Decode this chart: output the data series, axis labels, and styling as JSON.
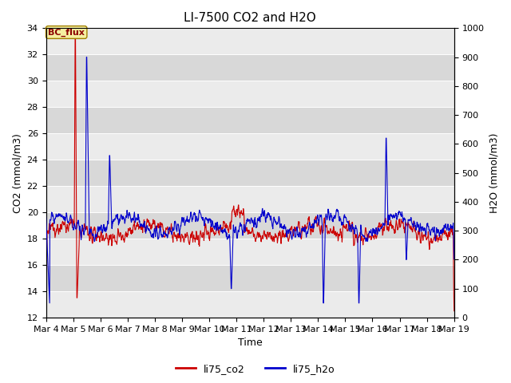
{
  "title": "LI-7500 CO2 and H2O",
  "xlabel": "Time",
  "ylabel_left": "CO2 (mmol/m3)",
  "ylabel_right": "H2O (mmol/m3)",
  "ylim_left": [
    12,
    34
  ],
  "ylim_right": [
    0,
    1000
  ],
  "yticks_left": [
    12,
    14,
    16,
    18,
    20,
    22,
    24,
    26,
    28,
    30,
    32,
    34
  ],
  "yticks_right": [
    0,
    100,
    200,
    300,
    400,
    500,
    600,
    700,
    800,
    900,
    1000
  ],
  "xtick_labels": [
    "Mar 4",
    "Mar 5",
    "Mar 6",
    "Mar 7",
    "Mar 8",
    "Mar 9",
    "Mar 10",
    "Mar 11",
    "Mar 12",
    "Mar 13",
    "Mar 14",
    "Mar 15",
    "Mar 16",
    "Mar 17",
    "Mar 18",
    "Mar 19"
  ],
  "annotation_text": "BC_flux",
  "co2_color": "#cc0000",
  "h2o_color": "#0000cc",
  "bg_light": "#ebebeb",
  "bg_dark": "#d8d8d8",
  "legend_labels": [
    "li75_co2",
    "li75_h2o"
  ],
  "title_fontsize": 11,
  "axis_fontsize": 9,
  "tick_fontsize": 8
}
